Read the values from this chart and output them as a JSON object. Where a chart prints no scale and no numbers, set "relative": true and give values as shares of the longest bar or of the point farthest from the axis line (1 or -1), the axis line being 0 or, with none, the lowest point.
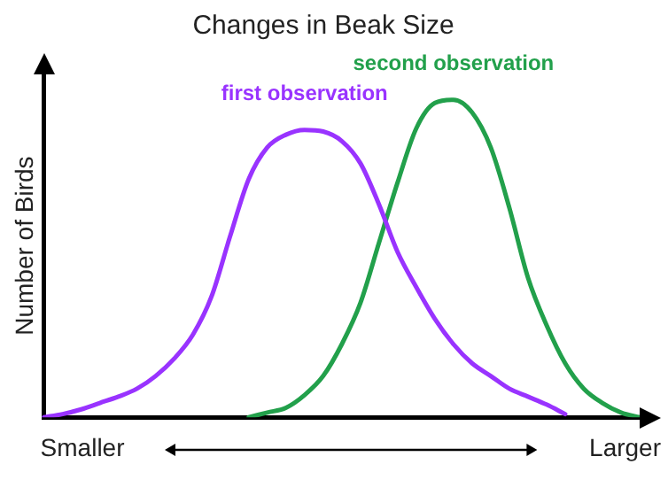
{
  "chart_data": {
    "type": "line",
    "title": "Changes in Beak Size",
    "ylabel": "Number of Birds",
    "relative": true,
    "grid": false,
    "legend": false,
    "marker": "none",
    "line_style": "solid",
    "categories": [
      null,
      null,
      null,
      null,
      null,
      null,
      null,
      null,
      null,
      null,
      null,
      null,
      null,
      null,
      null,
      null,
      null,
      null,
      null,
      null,
      null,
      null,
      null,
      null,
      null,
      null,
      null,
      null,
      null,
      null,
      null,
      null,
      null
    ],
    "series": [
      {
        "name": "first observation",
        "color": "#9933ff",
        "values": [
          0,
          0.01,
          0.025,
          0.045,
          0.065,
          0.09,
          0.13,
          0.185,
          0.26,
          0.38,
          0.57,
          0.75,
          0.85,
          0.89,
          0.905,
          0.9,
          0.87,
          0.8,
          0.67,
          0.52,
          0.41,
          0.31,
          0.23,
          0.17,
          0.13,
          0.09,
          0.065,
          0.04,
          0.01,
          null,
          null,
          null,
          null
        ]
      },
      {
        "name": "second observation",
        "color": "#22a04b",
        "values": [
          null,
          null,
          null,
          null,
          null,
          null,
          null,
          null,
          null,
          null,
          null,
          0,
          0.015,
          0.03,
          0.07,
          0.13,
          0.23,
          0.36,
          0.55,
          0.74,
          0.91,
          0.99,
          1,
          0.96,
          0.85,
          0.66,
          0.44,
          0.29,
          0.17,
          0.09,
          0.045,
          0.015,
          0
        ]
      }
    ],
    "annotations": [
      "Smaller",
      "Larger"
    ]
  }
}
